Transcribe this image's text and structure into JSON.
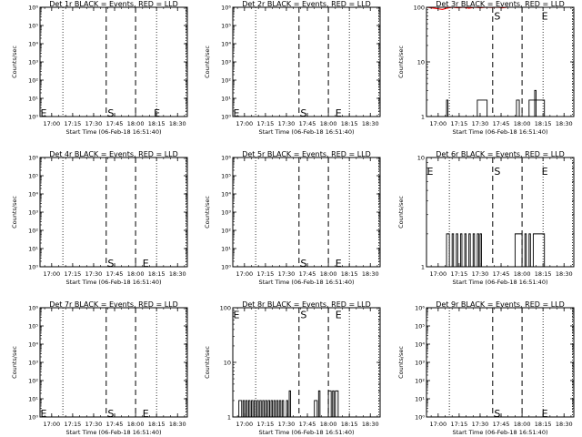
{
  "colors": {
    "events": "#000000",
    "lld": "#ff0000",
    "background": "#ffffff"
  },
  "shared": {
    "ylabel": "Counts/sec",
    "xlabel": "Start Time (06-Feb-18 16:51:40)",
    "x_ticks": [
      "17:00",
      "17:15",
      "17:30",
      "17:45",
      "18:00",
      "18:15",
      "18:30"
    ],
    "x_range": [
      "16:51:40",
      "18:37:00"
    ],
    "dotted_lines": [
      "17:08",
      "18:15",
      "18:36"
    ],
    "dashed_lines": [
      "17:39",
      "18:00"
    ],
    "marker_labels": {
      "start": "S",
      "end": "E"
    }
  },
  "chart_data": [
    {
      "type": "line",
      "title": "Det 1r BLACK = Events, RED = LLD",
      "yscale": "log",
      "ylim": [
        1,
        1000000
      ],
      "y_ticks": [
        "10⁰",
        "10¹",
        "10²",
        "10³",
        "10⁴",
        "10⁵",
        "10⁶"
      ],
      "markers": [
        {
          "label": "E",
          "x": "16:52",
          "y": 1.6
        },
        {
          "label": "S",
          "x": "17:40",
          "y": 1.6
        },
        {
          "label": "E",
          "x": "18:13",
          "y": 1.6
        }
      ],
      "series": []
    },
    {
      "type": "line",
      "title": "Det 2r BLACK = Events, RED = LLD",
      "yscale": "log",
      "ylim": [
        1,
        1000000
      ],
      "y_ticks": [
        "10⁰",
        "10¹",
        "10²",
        "10³",
        "10⁴",
        "10⁵",
        "10⁶"
      ],
      "markers": [
        {
          "label": "E",
          "x": "16:52",
          "y": 1.6
        },
        {
          "label": "S",
          "x": "17:40",
          "y": 1.6
        },
        {
          "label": "E",
          "x": "18:05",
          "y": 1.6
        }
      ],
      "series": []
    },
    {
      "type": "line",
      "title": "Det 3r BLACK = Events, RED = LLD",
      "yscale": "log",
      "ylim": [
        1,
        100
      ],
      "y_ticks": [
        "1",
        "10",
        "100"
      ],
      "markers": [
        {
          "label": "S",
          "x": "17:40",
          "y": 70
        },
        {
          "label": "E",
          "x": "18:14",
          "y": 70
        }
      ],
      "series": [
        {
          "color": "#000000",
          "style": "bars",
          "bars": [
            [
              "17:06",
              "17:07",
              2.0
            ],
            [
              "17:28",
              "17:35",
              2.0
            ],
            [
              "17:56",
              "17:58",
              2.0
            ],
            [
              "18:05",
              "18:16",
              2.0
            ],
            [
              "18:09",
              "18:10",
              3.0
            ]
          ]
        },
        {
          "color": "#ff0000",
          "style": "line",
          "points": [
            [
              "16:52",
              100
            ],
            [
              "16:56",
              97
            ],
            [
              "17:00",
              94
            ],
            [
              "17:03",
              91
            ],
            [
              "17:06",
              96
            ],
            [
              "17:10",
              100
            ],
            [
              "17:14",
              98
            ],
            [
              "17:18",
              100
            ],
            [
              "17:22",
              96
            ],
            [
              "17:26",
              100
            ],
            [
              "17:30",
              98
            ],
            [
              "17:34",
              100
            ],
            [
              "17:38",
              99
            ],
            [
              "17:42",
              100
            ],
            [
              "17:46",
              98
            ],
            [
              "17:50",
              100
            ],
            [
              "18:00",
              100
            ],
            [
              "18:10",
              100
            ],
            [
              "18:20",
              100
            ],
            [
              "18:36",
              100
            ]
          ]
        }
      ]
    },
    {
      "type": "line",
      "title": "Det 4r BLACK = Events, RED = LLD",
      "yscale": "log",
      "ylim": [
        1,
        1000000
      ],
      "y_ticks": [
        "10⁰",
        "10¹",
        "10²",
        "10³",
        "10⁴",
        "10⁵",
        "10⁶"
      ],
      "markers": [
        {
          "label": "S",
          "x": "17:40",
          "y": 1.6
        },
        {
          "label": "E",
          "x": "18:05",
          "y": 1.6
        }
      ],
      "series": []
    },
    {
      "type": "line",
      "title": "Det 5r BLACK = Events, RED = LLD",
      "yscale": "log",
      "ylim": [
        1,
        1000000
      ],
      "y_ticks": [
        "10⁰",
        "10¹",
        "10²",
        "10³",
        "10⁴",
        "10⁵",
        "10⁶"
      ],
      "markers": [
        {
          "label": "S",
          "x": "17:40",
          "y": 1.6
        },
        {
          "label": "E",
          "x": "18:05",
          "y": 1.6
        }
      ],
      "series": []
    },
    {
      "type": "line",
      "title": "Det 6r BLACK = Events, RED = LLD",
      "yscale": "log",
      "ylim": [
        1,
        10
      ],
      "y_ticks": [
        "1",
        "10"
      ],
      "markers": [
        {
          "label": "E",
          "x": "16:52",
          "y": 7.5
        },
        {
          "label": "S",
          "x": "17:40",
          "y": 7.5
        },
        {
          "label": "E",
          "x": "18:14",
          "y": 7.5
        }
      ],
      "series": [
        {
          "color": "#000000",
          "style": "bars",
          "bars": [
            [
              "17:06",
              "17:08",
              2.0
            ],
            [
              "17:10",
              "17:11",
              2.0
            ],
            [
              "17:13",
              "17:14",
              2.0
            ],
            [
              "17:16",
              "17:17",
              2.0
            ],
            [
              "17:19",
              "17:20",
              2.0
            ],
            [
              "17:22",
              "17:23",
              2.0
            ],
            [
              "17:25",
              "17:26",
              2.0
            ],
            [
              "17:28",
              "17:29",
              2.0
            ],
            [
              "17:30",
              "17:31",
              2.0
            ],
            [
              "17:55",
              "18:00",
              2.0
            ],
            [
              "18:02",
              "18:03",
              2.0
            ],
            [
              "18:05",
              "18:06",
              2.0
            ],
            [
              "18:08",
              "18:16",
              2.0
            ]
          ]
        }
      ]
    },
    {
      "type": "line",
      "title": "Det 7r BLACK = Events, RED = LLD",
      "yscale": "log",
      "ylim": [
        1,
        1000000
      ],
      "y_ticks": [
        "10⁰",
        "10¹",
        "10²",
        "10³",
        "10⁴",
        "10⁵",
        "10⁶"
      ],
      "markers": [
        {
          "label": "E",
          "x": "16:52",
          "y": 1.6
        },
        {
          "label": "S",
          "x": "17:40",
          "y": 1.6
        },
        {
          "label": "E",
          "x": "18:05",
          "y": 1.6
        }
      ],
      "series": []
    },
    {
      "type": "line",
      "title": "Det 8r BLACK = Events, RED = LLD",
      "yscale": "log",
      "ylim": [
        1,
        100
      ],
      "y_ticks": [
        "1",
        "10",
        "100"
      ],
      "markers": [
        {
          "label": "E",
          "x": "16:52",
          "y": 75
        },
        {
          "label": "S",
          "x": "17:40",
          "y": 75
        },
        {
          "label": "E",
          "x": "18:05",
          "y": 75
        }
      ],
      "series": [
        {
          "color": "#000000",
          "style": "bars",
          "bars": [
            [
              "16:56",
              "16:58",
              2.0
            ],
            [
              "16:59",
              "17:00",
              2.0
            ],
            [
              "17:01",
              "17:02",
              2.0
            ],
            [
              "17:03",
              "17:04",
              2.0
            ],
            [
              "17:05",
              "17:06",
              2.0
            ],
            [
              "17:07",
              "17:08",
              2.0
            ],
            [
              "17:09",
              "17:10",
              2.0
            ],
            [
              "17:11",
              "17:12",
              2.0
            ],
            [
              "17:13",
              "17:14",
              2.0
            ],
            [
              "17:15",
              "17:16",
              2.0
            ],
            [
              "17:17",
              "17:18",
              2.0
            ],
            [
              "17:19",
              "17:20",
              2.0
            ],
            [
              "17:21",
              "17:22",
              2.0
            ],
            [
              "17:23",
              "17:24",
              2.0
            ],
            [
              "17:25",
              "17:26",
              2.0
            ],
            [
              "17:27",
              "17:28",
              2.0
            ],
            [
              "17:30",
              "17:31",
              2.0
            ],
            [
              "17:32",
              "17:33",
              3.0
            ],
            [
              "17:50",
              "17:52",
              2.0
            ],
            [
              "17:53",
              "17:54",
              3.0
            ],
            [
              "18:00",
              "18:02",
              3.0
            ],
            [
              "18:03",
              "18:04",
              3.0
            ],
            [
              "18:05",
              "18:07",
              3.0
            ]
          ]
        }
      ]
    },
    {
      "type": "line",
      "title": "Det 9r BLACK = Events, RED = LLD",
      "yscale": "log",
      "ylim": [
        1,
        1000000
      ],
      "y_ticks": [
        "10⁰",
        "10¹",
        "10²",
        "10³",
        "10⁴",
        "10⁵",
        "10⁶"
      ],
      "markers": [
        {
          "label": "S",
          "x": "17:40",
          "y": 1.6
        },
        {
          "label": "E",
          "x": "18:14",
          "y": 1.6
        }
      ],
      "series": []
    }
  ]
}
